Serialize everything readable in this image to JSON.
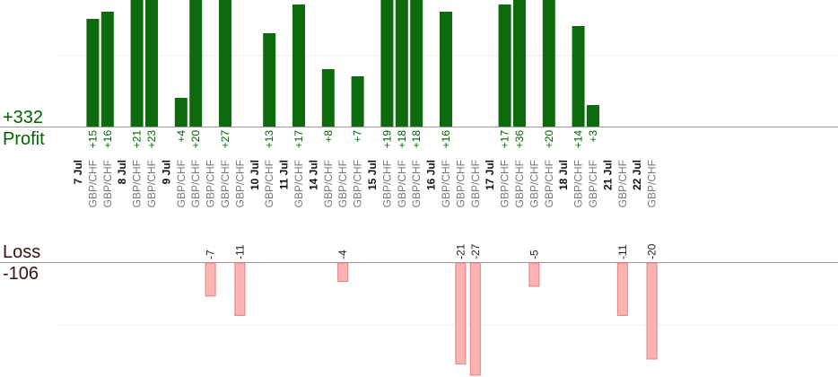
{
  "summary": {
    "profit_total": "+332",
    "profit_label": "Profit",
    "loss_label": "Loss",
    "loss_total": "-106"
  },
  "colors": {
    "profit_bar": "#0d6b0d",
    "profit_text": "#006400",
    "loss_bar": "#ffb3b3",
    "loss_bar_border": "#e08080",
    "date_text": "#111111",
    "pair_text": "#777777",
    "baseline": "#999999",
    "grid": "#eeeeee"
  },
  "chart_data": {
    "type": "bar",
    "profit_total": 332,
    "loss_total": -106,
    "columns": [
      {
        "kind": "date",
        "label": "7 Jul"
      },
      {
        "kind": "trade",
        "pair": "GBP/CHF",
        "value": 15
      },
      {
        "kind": "trade",
        "pair": "GBP/CHF",
        "value": 16
      },
      {
        "kind": "date",
        "label": "8 Jul"
      },
      {
        "kind": "trade",
        "pair": "GBP/CHF",
        "value": 21
      },
      {
        "kind": "trade",
        "pair": "GBP/CHF",
        "value": 23
      },
      {
        "kind": "date",
        "label": "9 Jul"
      },
      {
        "kind": "trade",
        "pair": "GBP/CHF",
        "value": 4
      },
      {
        "kind": "trade",
        "pair": "GBP/CHF",
        "value": 20
      },
      {
        "kind": "trade",
        "pair": "GBP/CHF",
        "value": -7
      },
      {
        "kind": "trade",
        "pair": "GBP/CHF",
        "value": 27
      },
      {
        "kind": "trade",
        "pair": "GBP/CHF",
        "value": -11
      },
      {
        "kind": "date",
        "label": "10 Jul"
      },
      {
        "kind": "trade",
        "pair": "GBP/CHF",
        "value": 13
      },
      {
        "kind": "date",
        "label": "11 Jul"
      },
      {
        "kind": "trade",
        "pair": "GBP/CHF",
        "value": 17
      },
      {
        "kind": "date",
        "label": "14 Jul"
      },
      {
        "kind": "trade",
        "pair": "GBP/CHF",
        "value": 8
      },
      {
        "kind": "trade",
        "pair": "GBP/CHF",
        "value": -4
      },
      {
        "kind": "trade",
        "pair": "GBP/CHF",
        "value": 7
      },
      {
        "kind": "date",
        "label": "15 Jul"
      },
      {
        "kind": "trade",
        "pair": "GBP/CHF",
        "value": 19
      },
      {
        "kind": "trade",
        "pair": "GBP/CHF",
        "value": 18
      },
      {
        "kind": "trade",
        "pair": "GBP/CHF",
        "value": 18
      },
      {
        "kind": "date",
        "label": "16 Jul"
      },
      {
        "kind": "trade",
        "pair": "GBP/CHF",
        "value": 16
      },
      {
        "kind": "trade",
        "pair": "GBP/CHF",
        "value": -21
      },
      {
        "kind": "trade",
        "pair": "GBP/CHF",
        "value": -27
      },
      {
        "kind": "date",
        "label": "17 Jul"
      },
      {
        "kind": "trade",
        "pair": "GBP/CHF",
        "value": 17
      },
      {
        "kind": "trade",
        "pair": "GBP/CHF",
        "value": 36
      },
      {
        "kind": "trade",
        "pair": "GBP/CHF",
        "value": -5
      },
      {
        "kind": "trade",
        "pair": "GBP/CHF",
        "value": 20
      },
      {
        "kind": "date",
        "label": "18 Jul"
      },
      {
        "kind": "trade",
        "pair": "GBP/CHF",
        "value": 14
      },
      {
        "kind": "trade",
        "pair": "GBP/CHF",
        "value": 3
      },
      {
        "kind": "date",
        "label": "21 Jul"
      },
      {
        "kind": "trade",
        "pair": "GBP/CHF",
        "value": -11
      },
      {
        "kind": "date",
        "label": "22 Jul"
      },
      {
        "kind": "trade",
        "pair": "GBP/CHF",
        "value": -20
      }
    ]
  }
}
